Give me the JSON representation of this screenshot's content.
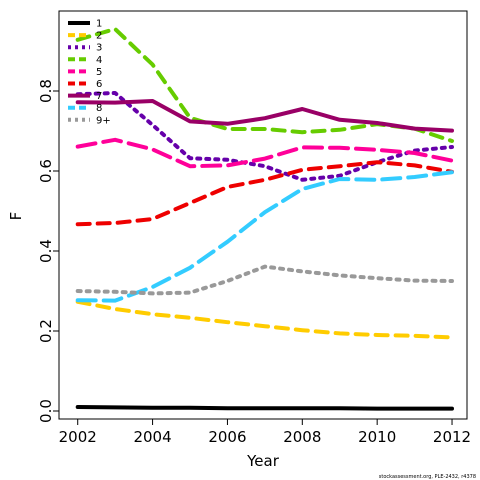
{
  "chart_data": {
    "type": "line",
    "title": "",
    "xlabel": "Year",
    "ylabel": "F",
    "xlim": [
      2001.5,
      2012.4
    ],
    "ylim": [
      -0.02,
      1.0
    ],
    "xticks": [
      2002,
      2004,
      2006,
      2008,
      2010,
      2012
    ],
    "xtick_labels": [
      "2002",
      "2004",
      "2006",
      "2008",
      "2010",
      "2012"
    ],
    "yticks": [
      0.0,
      0.2,
      0.4,
      0.6,
      0.8
    ],
    "ytick_labels": [
      "0.0",
      "0.2",
      "0.4",
      "0.6",
      "0.8"
    ],
    "grid": false,
    "legend_position": "top-left",
    "x": [
      2002,
      2003,
      2004,
      2005,
      2006,
      2007,
      2008,
      2009,
      2010,
      2011,
      2012
    ],
    "series": [
      {
        "name": "1",
        "color": "#000000",
        "dash": "solid",
        "values": [
          0.01,
          0.009,
          0.008,
          0.008,
          0.007,
          0.007,
          0.007,
          0.007,
          0.006,
          0.006,
          0.006
        ]
      },
      {
        "name": "2",
        "color": "#FFCC00",
        "dash": "dashed",
        "values": [
          0.273,
          0.255,
          0.242,
          0.233,
          0.222,
          0.212,
          0.202,
          0.194,
          0.19,
          0.188,
          0.184
        ]
      },
      {
        "name": "3",
        "color": "#6600AA",
        "dash": "dotted",
        "values": [
          0.792,
          0.795,
          0.715,
          0.632,
          0.628,
          0.612,
          0.578,
          0.588,
          0.622,
          0.651,
          0.66
        ]
      },
      {
        "name": "4",
        "color": "#66CC00",
        "dash": "dashed",
        "values": [
          0.928,
          0.955,
          0.866,
          0.733,
          0.705,
          0.705,
          0.697,
          0.703,
          0.717,
          0.706,
          0.675
        ]
      },
      {
        "name": "5",
        "color": "#FF0099",
        "dash": "longdash",
        "values": [
          0.661,
          0.678,
          0.654,
          0.612,
          0.614,
          0.631,
          0.659,
          0.658,
          0.653,
          0.645,
          0.626
        ]
      },
      {
        "name": "6",
        "color": "#EE0000",
        "dash": "dashed",
        "values": [
          0.467,
          0.47,
          0.48,
          0.52,
          0.56,
          0.578,
          0.603,
          0.612,
          0.622,
          0.614,
          0.598
        ]
      },
      {
        "name": "7",
        "color": "#990066",
        "dash": "solid",
        "values": [
          0.772,
          0.771,
          0.775,
          0.724,
          0.718,
          0.732,
          0.755,
          0.728,
          0.72,
          0.706,
          0.701
        ]
      },
      {
        "name": "8",
        "color": "#33CCFF",
        "dash": "longdash",
        "values": [
          0.277,
          0.276,
          0.31,
          0.358,
          0.423,
          0.497,
          0.555,
          0.58,
          0.578,
          0.585,
          0.597
        ]
      },
      {
        "name": "9+",
        "color": "#999999",
        "dash": "dotted",
        "values": [
          0.3,
          0.298,
          0.294,
          0.296,
          0.325,
          0.361,
          0.349,
          0.339,
          0.332,
          0.326,
          0.325
        ]
      }
    ],
    "credit": "stockassessment.org, PLE-2432, r4378"
  }
}
